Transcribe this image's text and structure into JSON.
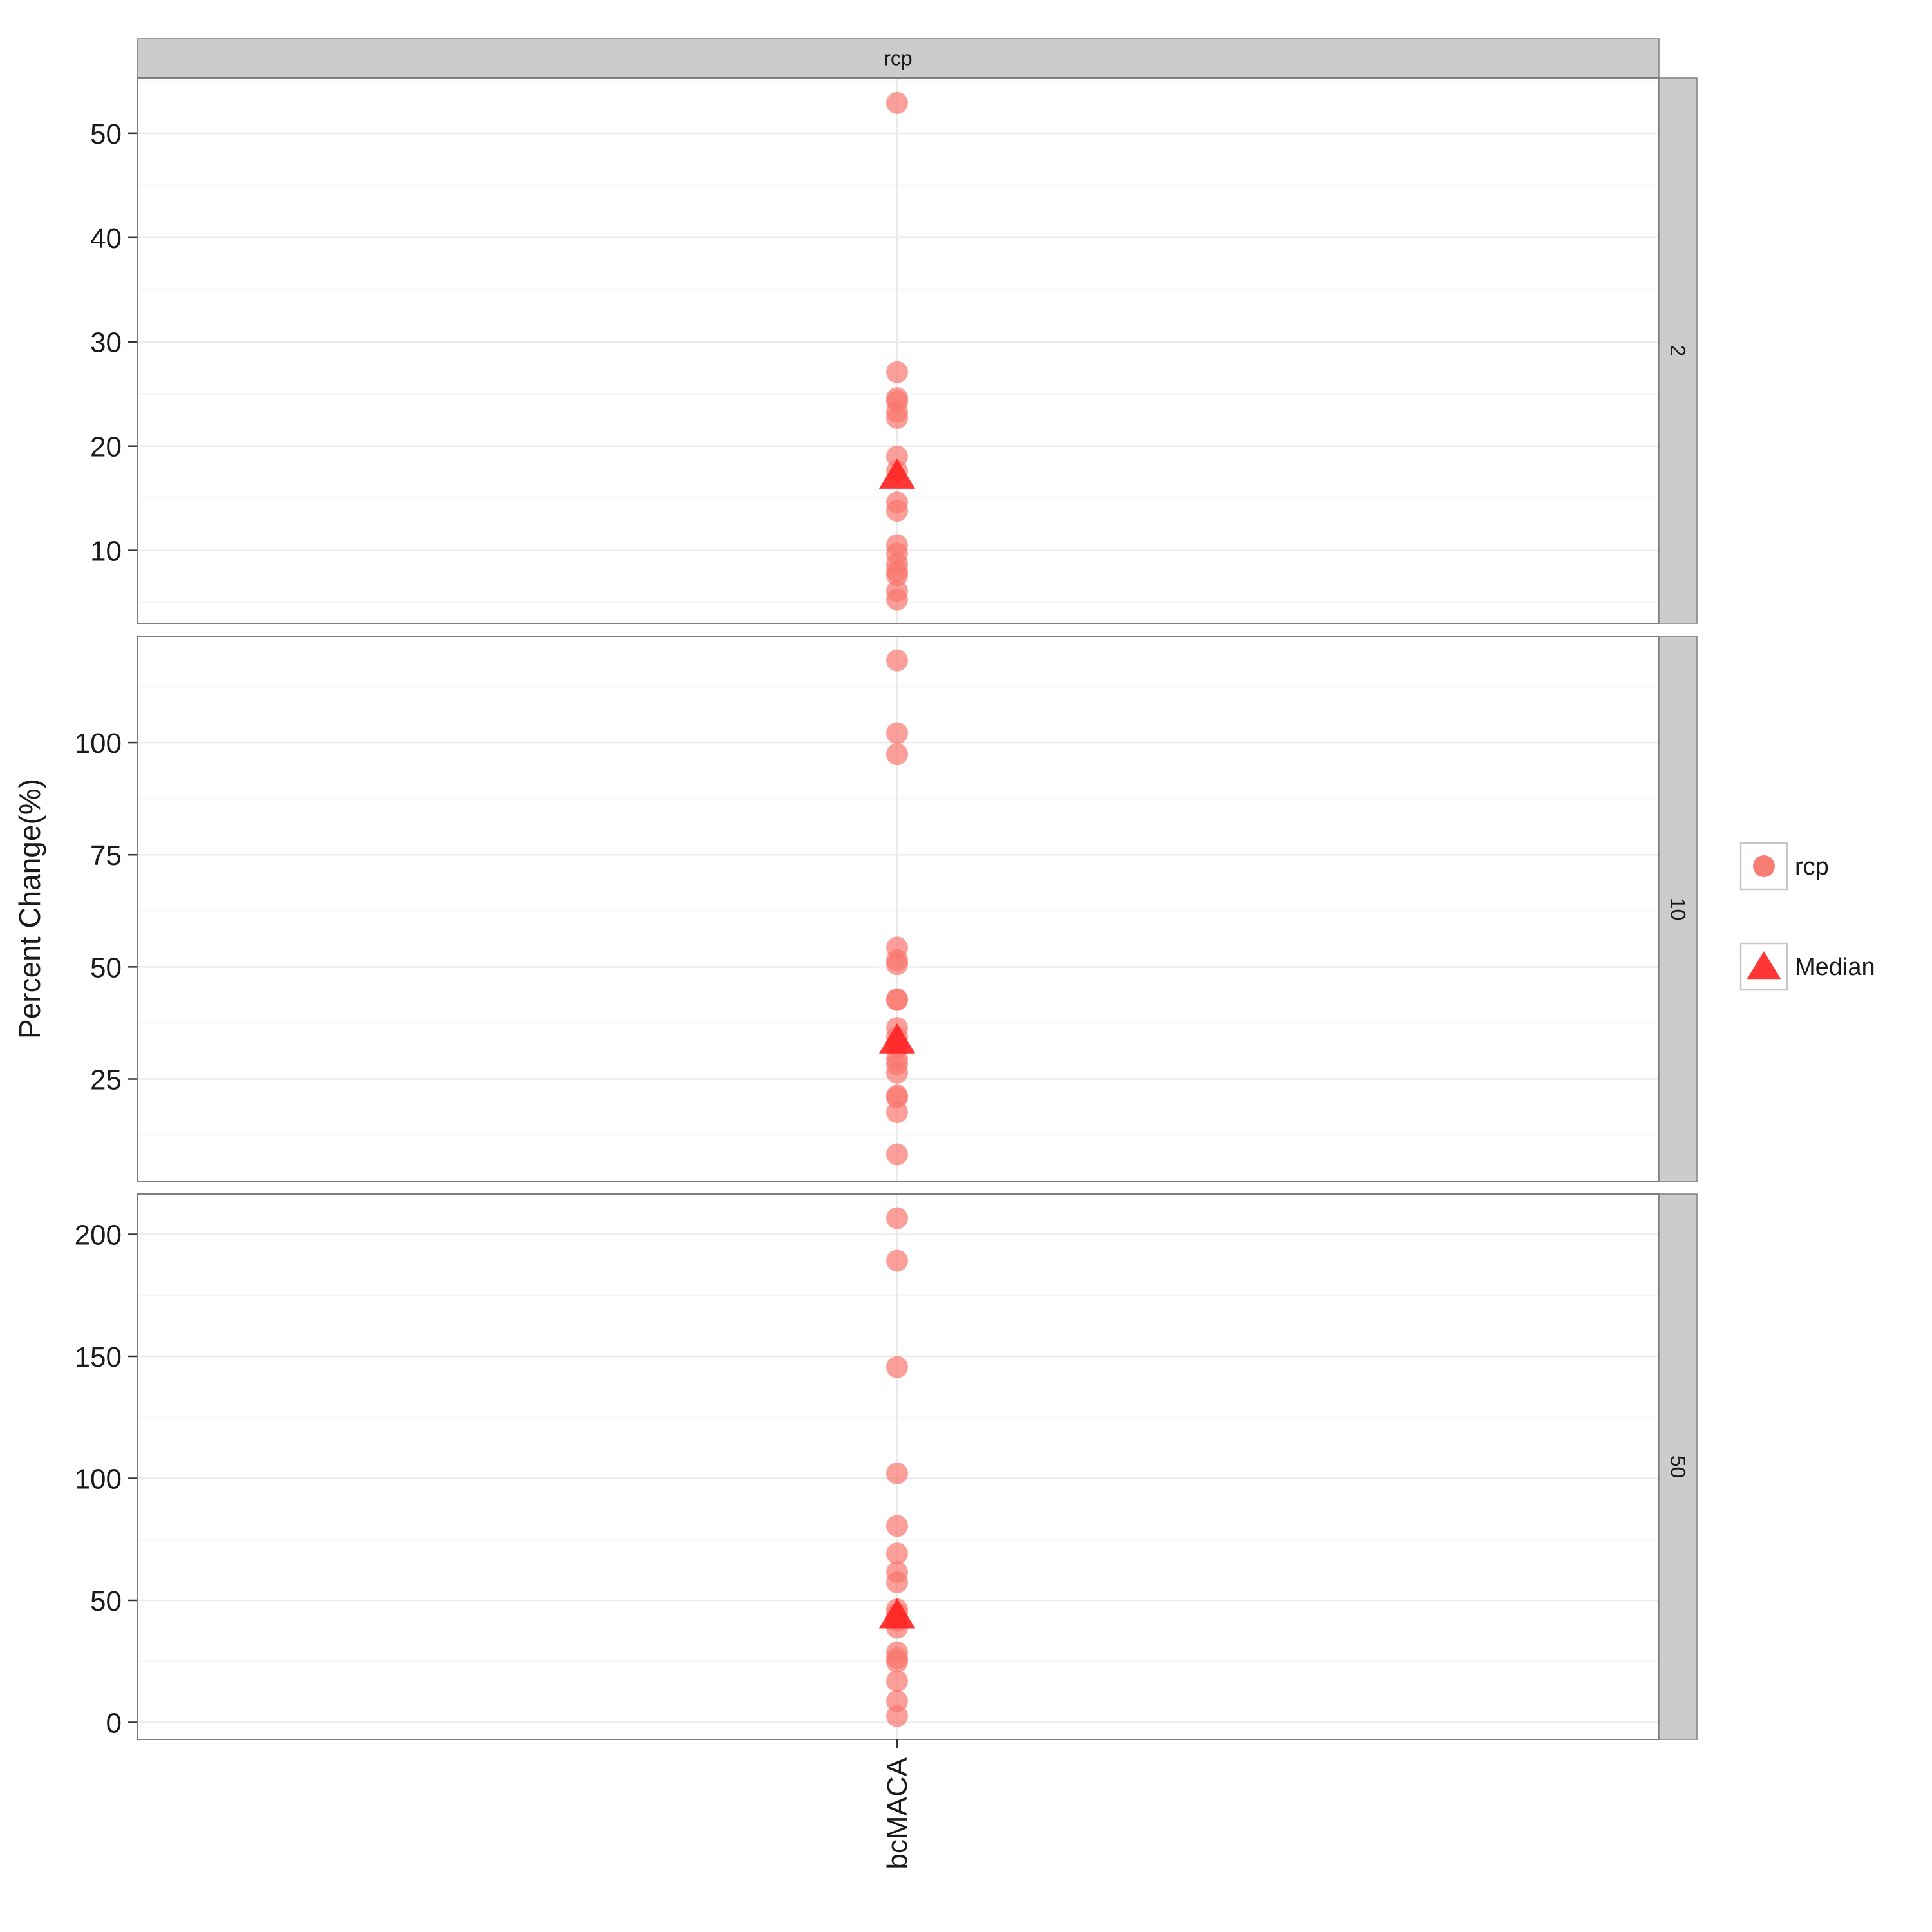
{
  "chart_data": {
    "type": "scatter",
    "facet_column_label": "rcp",
    "ylabel": "Percent Change(%)",
    "xlabel": "",
    "categories": [
      "bcMACA"
    ],
    "legend": {
      "position": "right",
      "entries": [
        {
          "label": "rcp",
          "shape": "circle"
        },
        {
          "label": "Median",
          "shape": "triangle"
        }
      ]
    },
    "colors": {
      "point": "#f8766d",
      "median": "#ff2020",
      "strip": "#cccccc",
      "grid_major": "#ebebeb",
      "grid_minor": "#f5f5f5",
      "panel_border": "#7f7f7f"
    },
    "panels": [
      {
        "facet_label": "2",
        "ylim": [
          3,
          55.3
        ],
        "yticks": [
          10,
          20,
          30,
          40,
          50
        ],
        "points": [
          52.9,
          27.1,
          24.6,
          24.3,
          23.3,
          22.7,
          19.0,
          17.6,
          14.6,
          13.8,
          10.5,
          9.7,
          8.7,
          8.0,
          7.6,
          6.1,
          5.3
        ],
        "median": 17.2
      },
      {
        "facet_label": "10",
        "ylim": [
          2.1,
          123.7
        ],
        "yticks": [
          25,
          50,
          75,
          100
        ],
        "points": [
          118.3,
          102.1,
          97.4,
          54.3,
          51.5,
          50.6,
          42.8,
          42.6,
          36.4,
          34.3,
          32.1,
          29.6,
          28.3,
          26.4,
          21.3,
          20.9,
          17.6,
          8.2
        ],
        "median": 33.7
      },
      {
        "facet_label": "50",
        "ylim": [
          -7,
          216.5
        ],
        "yticks": [
          0,
          50,
          100,
          150,
          200
        ],
        "points": [
          206.6,
          189.2,
          145.6,
          102.0,
          80.5,
          69.2,
          61.6,
          57.4,
          46.3,
          44.5,
          41.6,
          38.8,
          28.7,
          26.2,
          24.8,
          16.9,
          8.7,
          2.6
        ],
        "median": 44.0
      }
    ]
  }
}
